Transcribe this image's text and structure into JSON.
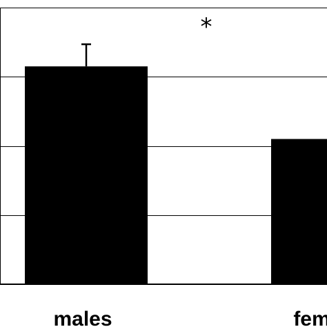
{
  "chart_data": {
    "type": "bar",
    "categories": [
      "males",
      "fem"
    ],
    "values": [
      3.15,
      2.1
    ],
    "error_bars": [
      0.32,
      null
    ],
    "ylim": [
      0,
      4
    ],
    "grid": true,
    "annotations": [
      "*"
    ],
    "bar_color": "#000000",
    "grid_color": "#000000"
  }
}
